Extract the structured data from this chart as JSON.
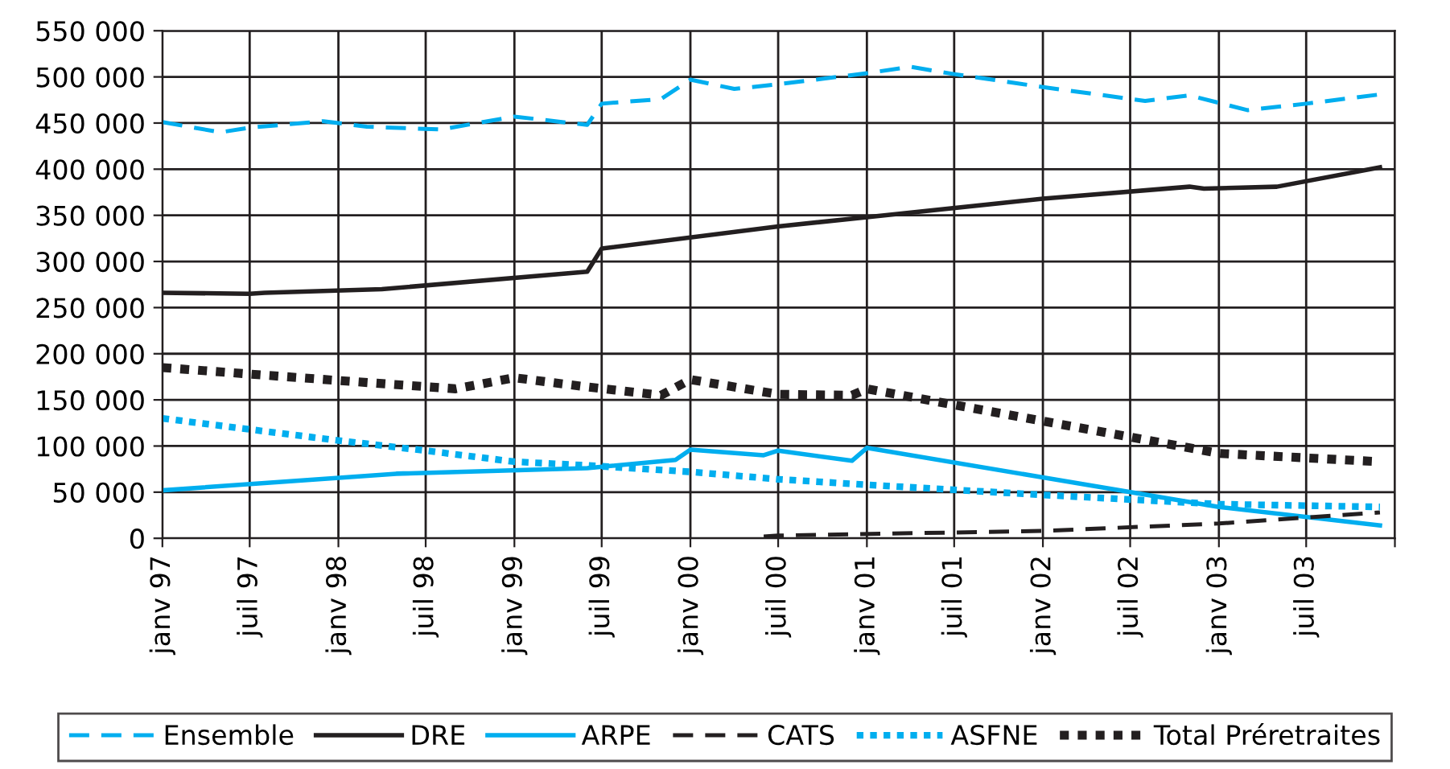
{
  "chart_data": {
    "type": "line",
    "xlim": [
      "1997-01",
      "2004-01"
    ],
    "xticks": [
      {
        "value": "1997-01",
        "label": "janv 97"
      },
      {
        "value": "1997-07",
        "label": "juil 97"
      },
      {
        "value": "1998-01",
        "label": "janv 98"
      },
      {
        "value": "1998-07",
        "label": "juil 98"
      },
      {
        "value": "1999-01",
        "label": "janv 99"
      },
      {
        "value": "1999-07",
        "label": "juil 99"
      },
      {
        "value": "2000-01",
        "label": "janv 00"
      },
      {
        "value": "2000-07",
        "label": "juil 00"
      },
      {
        "value": "2001-01",
        "label": "janv 01"
      },
      {
        "value": "2001-07",
        "label": "juil 01"
      },
      {
        "value": "2002-01",
        "label": "janv 02"
      },
      {
        "value": "2002-07",
        "label": "juil 02"
      },
      {
        "value": "2003-01",
        "label": "janv 03"
      },
      {
        "value": "2003-07",
        "label": "juil 03"
      },
      {
        "value": "2004-01",
        "label": null
      }
    ],
    "ylim": [
      0,
      550000
    ],
    "yticks": [
      {
        "value": 0,
        "label": "0"
      },
      {
        "value": 50000,
        "label": "50 000"
      },
      {
        "value": 100000,
        "label": "100 000"
      },
      {
        "value": 150000,
        "label": "150 000"
      },
      {
        "value": 200000,
        "label": "200 000"
      },
      {
        "value": 250000,
        "label": "250 000"
      },
      {
        "value": 300000,
        "label": "300 000"
      },
      {
        "value": 350000,
        "label": "350 000"
      },
      {
        "value": 400000,
        "label": "400 000"
      },
      {
        "value": 450000,
        "label": "450 000"
      },
      {
        "value": 500000,
        "label": "500 000"
      },
      {
        "value": 550000,
        "label": "550 000"
      }
    ],
    "grid": true,
    "legend": "bottom",
    "series": [
      {
        "name": "Ensemble",
        "color": "#00aeef",
        "line_style": "dashed",
        "x": [
          "1997-01",
          "1997-05",
          "1997-07",
          "1997-12",
          "1998-03",
          "1998-08",
          "1999-01",
          "1999-06",
          "1999-07",
          "1999-11",
          "2000-01",
          "2000-04",
          "2000-07",
          "2001-01",
          "2001-04",
          "2001-07",
          "2002-01",
          "2002-08",
          "2002-11",
          "2003-03",
          "2003-07",
          "2003-12"
        ],
        "values": [
          451000,
          440000,
          445000,
          452000,
          446000,
          443000,
          457000,
          448000,
          471000,
          476000,
          497000,
          487000,
          492000,
          504000,
          511000,
          503000,
          489000,
          474000,
          480000,
          464000,
          471000,
          481000
        ]
      },
      {
        "name": "DRE",
        "color": "#231f20",
        "line_style": "solid",
        "x": [
          "1997-01",
          "1997-07",
          "1997-08",
          "1998-04",
          "1999-06",
          "1999-07",
          "2000-07",
          "2001-01",
          "2002-01",
          "2002-11",
          "2002-12",
          "2003-05",
          "2003-12"
        ],
        "values": [
          266000,
          265000,
          266000,
          270000,
          289000,
          314000,
          338000,
          348000,
          368000,
          381000,
          379000,
          381000,
          402000
        ]
      },
      {
        "name": "ARPE",
        "color": "#00aeef",
        "line_style": "solid",
        "x": [
          "1997-01",
          "1998-05",
          "1999-06",
          "1999-12",
          "2000-01",
          "2000-06",
          "2000-07",
          "2000-12",
          "2001-01",
          "2002-01",
          "2003-01",
          "2003-12"
        ],
        "values": [
          52000,
          70000,
          76000,
          85000,
          96000,
          90000,
          95000,
          84000,
          98000,
          66000,
          34000,
          14000
        ]
      },
      {
        "name": "CATS",
        "color": "#231f20",
        "line_style": "dashed",
        "x": [
          "2000-06",
          "2000-07",
          "2002-01",
          "2003-01",
          "2003-12"
        ],
        "values": [
          2000,
          3000,
          8000,
          16000,
          28000
        ]
      },
      {
        "name": "ASFNE",
        "color": "#00aeef",
        "line_style": "dotted",
        "x": [
          "1997-01",
          "1997-07",
          "1998-01",
          "1998-07",
          "1999-01",
          "1999-06",
          "2000-01",
          "2000-07",
          "2001-01",
          "2002-01",
          "2003-01",
          "2003-12"
        ],
        "values": [
          130000,
          118000,
          106000,
          95000,
          83000,
          79000,
          72000,
          64000,
          58000,
          47000,
          37000,
          34000
        ]
      },
      {
        "name": "Total Préretraites",
        "color": "#231f20",
        "line_style": "dotted",
        "x": [
          "1997-01",
          "1997-07",
          "1998-01",
          "1998-09",
          "1999-01",
          "1999-06",
          "1999-11",
          "2000-01",
          "2000-07",
          "2000-12",
          "2001-01",
          "2002-01",
          "2002-11",
          "2003-01",
          "2003-12"
        ],
        "values": [
          185000,
          178000,
          171000,
          162000,
          174000,
          164000,
          155000,
          172000,
          156000,
          155000,
          162000,
          127000,
          98000,
          92000,
          83000
        ]
      }
    ]
  }
}
